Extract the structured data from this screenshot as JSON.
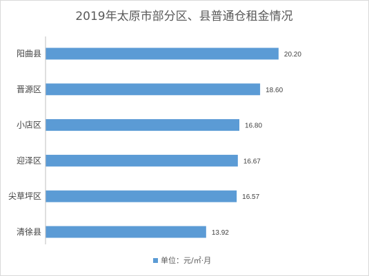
{
  "chart_data": {
    "type": "bar",
    "orientation": "horizontal",
    "title": "2019年太原市部分区、县普通仓租金情况",
    "categories": [
      "阳曲县",
      "晋源区",
      "小店区",
      "迎泽区",
      "尖草坪区",
      "清徐县"
    ],
    "series": [
      {
        "name": "单位：元/㎡·月",
        "values": [
          20.2,
          18.6,
          16.8,
          16.67,
          16.57,
          13.92
        ],
        "labels": [
          "20.20",
          "18.60",
          "16.80",
          "16.67",
          "16.57",
          "13.92"
        ],
        "color": "#5b9bd5"
      }
    ],
    "xlim": [
      0,
      22
    ],
    "grid": false,
    "legend": "bottom"
  }
}
